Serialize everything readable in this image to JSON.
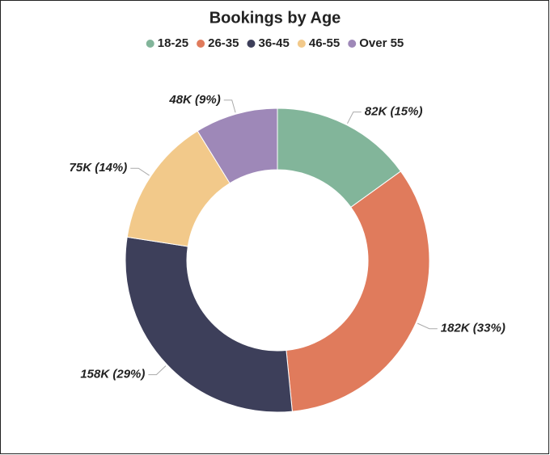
{
  "chart_data": {
    "type": "donut",
    "title": "Bookings by Age",
    "categories": [
      "18-25",
      "26-35",
      "36-45",
      "46-55",
      "Over 55"
    ],
    "values": [
      82000,
      182000,
      158000,
      75000,
      48000
    ],
    "value_labels": [
      "82K (15%)",
      "182K (33%)",
      "158K (29%)",
      "75K (14%)",
      "48K (9%)"
    ],
    "colors": [
      "#82b59a",
      "#e07b5c",
      "#3d3f5a",
      "#f2c98a",
      "#9e88b8"
    ],
    "legend": "top"
  }
}
